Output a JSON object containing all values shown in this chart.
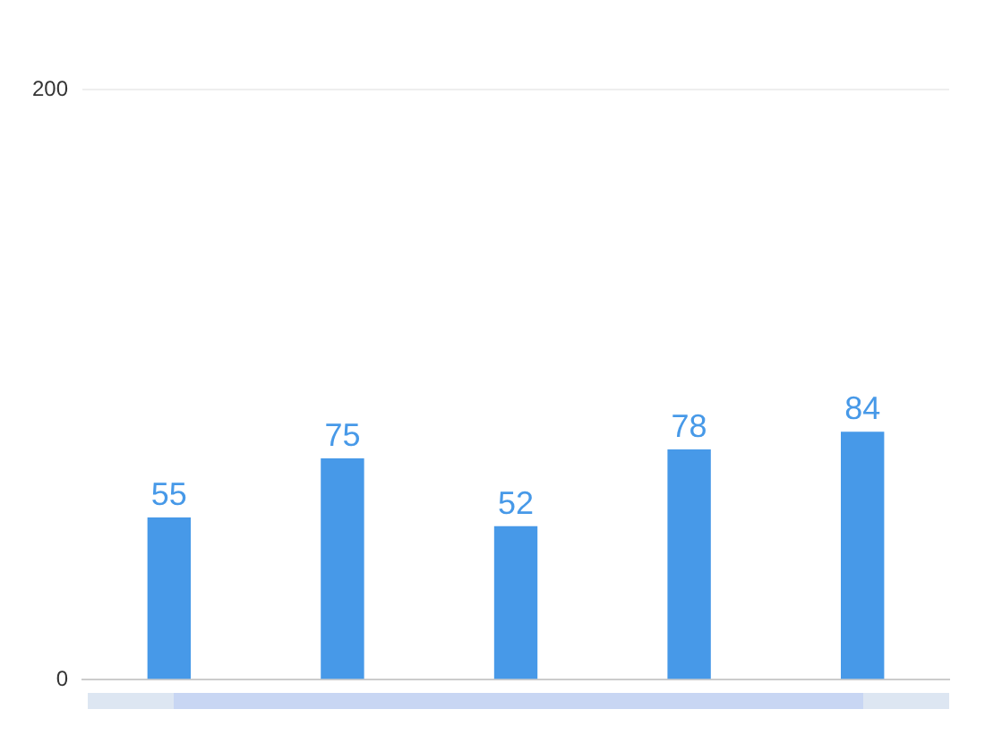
{
  "chart_data": {
    "type": "bar",
    "categories": [
      null,
      null,
      null,
      null,
      null
    ],
    "values": [
      55,
      75,
      52,
      78,
      84
    ],
    "color": "#4799e8",
    "ylim": [
      0,
      200
    ],
    "yticks": [
      0,
      200
    ],
    "grid": "y",
    "data_labels": true
  }
}
